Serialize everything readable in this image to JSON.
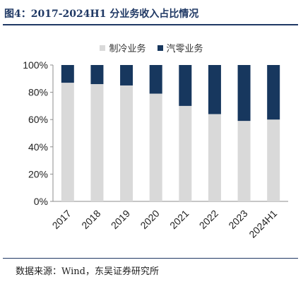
{
  "figure_title": "图4：2017-2024H1 分业务收入占比情况",
  "source_note": "数据来源：Wind，东吴证券研究所",
  "colors": {
    "series_0": "#d9d9d9",
    "series_1": "#17375e",
    "title": "#1f3864"
  },
  "chart_data": {
    "type": "bar",
    "stacked": true,
    "title": "",
    "xlabel": "",
    "ylabel": "",
    "categories": [
      "2017",
      "2018",
      "2019",
      "2020",
      "2021",
      "2022",
      "2023",
      "2024H1"
    ],
    "series": [
      {
        "name": "制冷业务",
        "values": [
          87,
          86,
          85,
          79,
          70,
          64,
          59,
          60
        ]
      },
      {
        "name": "汽零业务",
        "values": [
          13,
          14,
          15,
          21,
          30,
          36,
          41,
          40
        ]
      }
    ],
    "ylim": [
      0,
      100
    ],
    "yticks": [
      "0%",
      "20%",
      "40%",
      "60%",
      "80%",
      "100%"
    ],
    "grid": false,
    "legend_position": "top-center"
  }
}
